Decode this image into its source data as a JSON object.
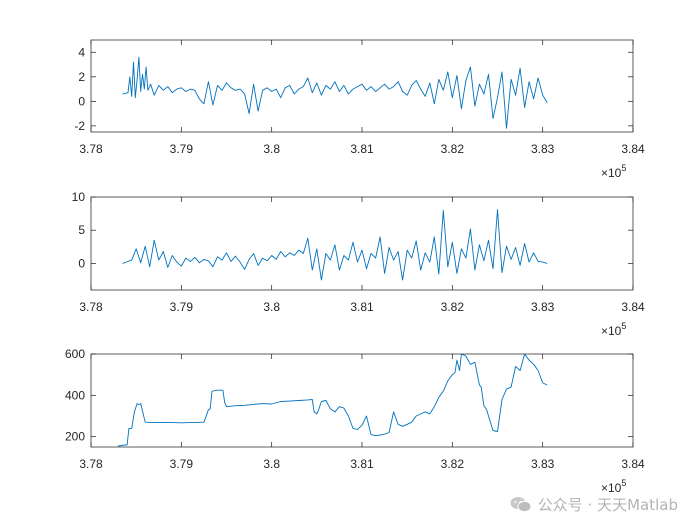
{
  "chart_data": [
    {
      "type": "line",
      "xlim": [
        378000,
        384000
      ],
      "ylim": [
        -2.5,
        5
      ],
      "xticks": [
        "3.78",
        "3.79",
        "3.8",
        "3.81",
        "3.82",
        "3.83",
        "3.84"
      ],
      "xtick_values": [
        378000,
        379000,
        380000,
        381000,
        382000,
        383000,
        384000
      ],
      "yticks": [
        "-2",
        "0",
        "2",
        "4"
      ],
      "ytick_values": [
        -2,
        0,
        2,
        4
      ],
      "x_exponent_base": "×10",
      "x_exponent_power": "5",
      "series": [
        {
          "color": "#0072BD",
          "x": [
            378350,
            378410,
            378430,
            378450,
            378470,
            378490,
            378510,
            378530,
            378550,
            378570,
            378590,
            378610,
            378630,
            378660,
            378700,
            378750,
            378800,
            378850,
            378900,
            378950,
            379000,
            379050,
            379100,
            379150,
            379200,
            379250,
            379300,
            379350,
            379400,
            379450,
            379500,
            379550,
            379600,
            379650,
            379700,
            379750,
            379800,
            379850,
            379900,
            379950,
            380000,
            380050,
            380100,
            380150,
            380200,
            380250,
            380300,
            380350,
            380400,
            380450,
            380500,
            380550,
            380600,
            380650,
            380700,
            380750,
            380800,
            380850,
            380900,
            380950,
            381000,
            381050,
            381100,
            381150,
            381200,
            381250,
            381300,
            381350,
            381400,
            381450,
            381500,
            381550,
            381600,
            381650,
            381700,
            381750,
            381800,
            381850,
            381900,
            381950,
            382000,
            382050,
            382100,
            382150,
            382200,
            382250,
            382300,
            382350,
            382400,
            382450,
            382500,
            382550,
            382600,
            382650,
            382700,
            382750,
            382800,
            382850,
            382900,
            382950,
            383000,
            383050
          ],
          "y": [
            0.6,
            0.7,
            2.0,
            0.4,
            3.2,
            0.3,
            1.8,
            3.6,
            0.8,
            2.2,
            1.0,
            2.8,
            0.9,
            1.4,
            0.5,
            1.3,
            0.9,
            1.2,
            0.7,
            1.0,
            1.1,
            0.8,
            1.0,
            0.9,
            0.2,
            -0.2,
            1.6,
            -0.3,
            1.3,
            0.9,
            1.5,
            1.1,
            0.9,
            1.0,
            0.6,
            -1.0,
            1.4,
            -0.8,
            0.9,
            1.1,
            0.8,
            1.0,
            0.3,
            1.1,
            1.3,
            0.6,
            1.0,
            1.2,
            1.9,
            0.7,
            1.5,
            0.5,
            1.3,
            1.0,
            1.6,
            0.8,
            1.3,
            0.6,
            1.0,
            1.2,
            1.4,
            0.9,
            1.2,
            0.8,
            1.1,
            1.4,
            1.0,
            1.2,
            1.6,
            0.8,
            0.5,
            1.3,
            1.7,
            1.0,
            0.4,
            1.5,
            -0.2,
            1.8,
            0.9,
            2.4,
            0.3,
            2.1,
            -0.6,
            1.7,
            2.8,
            -0.4,
            1.4,
            0.6,
            2.2,
            -1.4,
            0.3,
            2.4,
            -2.2,
            1.8,
            0.5,
            2.7,
            -0.5,
            1.6,
            0.2,
            1.9,
            0.5,
            -0.1
          ]
        }
      ]
    },
    {
      "type": "line",
      "xlim": [
        378000,
        384000
      ],
      "ylim": [
        -4,
        10
      ],
      "xticks": [
        "3.78",
        "3.79",
        "3.8",
        "3.81",
        "3.82",
        "3.83",
        "3.84"
      ],
      "xtick_values": [
        378000,
        379000,
        380000,
        381000,
        382000,
        383000,
        384000
      ],
      "yticks": [
        "0",
        "5",
        "10"
      ],
      "ytick_values": [
        0,
        5,
        10
      ],
      "x_exponent_base": "×10",
      "x_exponent_power": "5",
      "series": [
        {
          "color": "#0072BD",
          "x": [
            378350,
            378450,
            378500,
            378550,
            378600,
            378650,
            378700,
            378750,
            378800,
            378850,
            378900,
            378950,
            379000,
            379050,
            379100,
            379150,
            379200,
            379250,
            379300,
            379350,
            379400,
            379450,
            379500,
            379550,
            379600,
            379650,
            379700,
            379750,
            379800,
            379850,
            379900,
            379950,
            380000,
            380050,
            380100,
            380150,
            380200,
            380250,
            380300,
            380350,
            380400,
            380450,
            380500,
            380550,
            380600,
            380650,
            380700,
            380750,
            380800,
            380850,
            380900,
            380950,
            381000,
            381050,
            381100,
            381150,
            381200,
            381250,
            381300,
            381350,
            381400,
            381450,
            381500,
            381550,
            381600,
            381650,
            381700,
            381750,
            381800,
            381850,
            381900,
            381950,
            382000,
            382050,
            382100,
            382150,
            382200,
            382250,
            382300,
            382350,
            382400,
            382450,
            382500,
            382550,
            382600,
            382650,
            382700,
            382750,
            382800,
            382850,
            382900,
            382950,
            383000,
            383050
          ],
          "y": [
            0,
            0.5,
            2.2,
            0.1,
            2.6,
            -0.5,
            3.5,
            0.5,
            1.8,
            -0.6,
            1.2,
            0.2,
            -0.4,
            0.8,
            0.3,
            0.9,
            0.1,
            0.6,
            0.4,
            -0.5,
            1.0,
            0.5,
            1.6,
            0.3,
            1.1,
            0.2,
            -0.9,
            0.6,
            1.5,
            -0.3,
            0.8,
            0.4,
            1.2,
            0.6,
            1.8,
            1.0,
            1.6,
            1.2,
            2.0,
            1.5,
            3.8,
            -1.0,
            2.2,
            -2.5,
            1.5,
            0.5,
            2.8,
            -1.0,
            1.2,
            0.5,
            3.2,
            0.2,
            2.0,
            -0.8,
            1.5,
            0.8,
            4.0,
            -1.5,
            2.4,
            0.5,
            1.8,
            -2.5,
            2.0,
            0.8,
            3.4,
            -1.0,
            1.6,
            0.2,
            4.0,
            -1.6,
            8.0,
            -0.5,
            3.2,
            -1.5,
            2.2,
            0.8,
            5.2,
            -1.0,
            2.8,
            0.4,
            3.5,
            -0.8,
            8.1,
            -1.4,
            2.6,
            0.6,
            2.4,
            -0.3,
            3.0,
            0.2,
            1.6,
            0.3,
            0.2,
            0.0
          ]
        }
      ]
    },
    {
      "type": "line",
      "xlim": [
        378000,
        384000
      ],
      "ylim": [
        150,
        600
      ],
      "xticks": [
        "3.78",
        "3.79",
        "3.8",
        "3.81",
        "3.82",
        "3.83",
        "3.84"
      ],
      "xtick_values": [
        378000,
        379000,
        380000,
        381000,
        382000,
        383000,
        384000
      ],
      "yticks": [
        "200",
        "400",
        "600"
      ],
      "ytick_values": [
        200,
        400,
        600
      ],
      "x_exponent_base": "×10",
      "x_exponent_power": "5",
      "series": [
        {
          "color": "#0072BD",
          "x": [
            378300,
            378380,
            378400,
            378420,
            378450,
            378480,
            378510,
            378530,
            378550,
            378600,
            378700,
            378800,
            378900,
            379000,
            379100,
            379250,
            379300,
            379320,
            379340,
            379400,
            379460,
            379480,
            379500,
            379600,
            379700,
            379800,
            379900,
            380000,
            380100,
            380200,
            380300,
            380400,
            380450,
            380470,
            380500,
            380520,
            380550,
            380600,
            380650,
            380700,
            380750,
            380800,
            380850,
            380900,
            380950,
            381000,
            381050,
            381100,
            381150,
            381200,
            381250,
            381300,
            381350,
            381400,
            381450,
            381500,
            381550,
            381600,
            381650,
            381700,
            381750,
            381800,
            381850,
            381900,
            381950,
            382000,
            382030,
            382050,
            382080,
            382100,
            382150,
            382200,
            382250,
            382300,
            382320,
            382350,
            382380,
            382400,
            382450,
            382500,
            382550,
            382600,
            382650,
            382700,
            382750,
            382800,
            382850,
            382900,
            382950,
            383000,
            383050
          ],
          "y": [
            155,
            160,
            160,
            240,
            240,
            320,
            360,
            355,
            360,
            270,
            268,
            268,
            268,
            267,
            268,
            270,
            330,
            335,
            420,
            425,
            425,
            365,
            345,
            350,
            352,
            356,
            360,
            358,
            370,
            372,
            375,
            378,
            380,
            320,
            310,
            330,
            370,
            375,
            335,
            320,
            345,
            338,
            300,
            240,
            235,
            255,
            300,
            210,
            205,
            208,
            212,
            220,
            320,
            260,
            250,
            260,
            270,
            300,
            310,
            320,
            310,
            345,
            390,
            420,
            470,
            500,
            510,
            570,
            520,
            600,
            590,
            550,
            560,
            450,
            440,
            350,
            330,
            300,
            230,
            225,
            380,
            430,
            440,
            540,
            520,
            600,
            570,
            550,
            520,
            460,
            450
          ]
        }
      ]
    }
  ],
  "watermark": {
    "text": "公众号 · 天天Matlab"
  }
}
